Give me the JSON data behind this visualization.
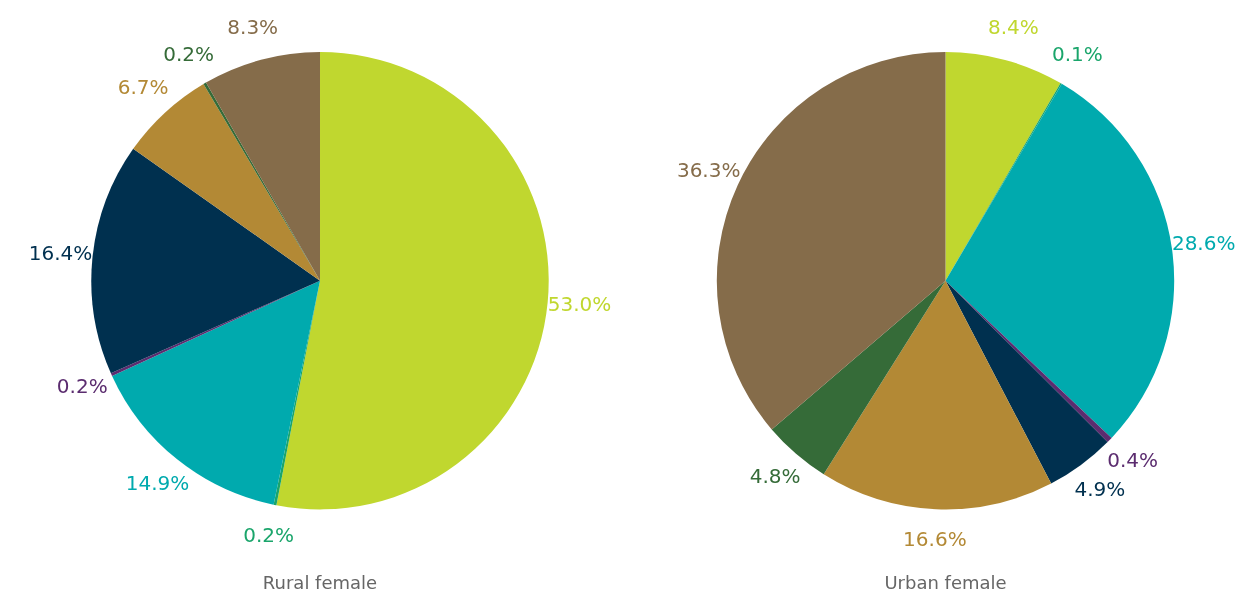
{
  "chart_data": [
    {
      "type": "pie",
      "title": "Rural female",
      "categories": [
        null,
        null,
        null,
        null,
        null,
        null,
        null,
        null
      ],
      "values": [
        53.0,
        0.2,
        14.9,
        0.2,
        16.4,
        6.7,
        0.2,
        8.3
      ],
      "value_labels": [
        "53.0%",
        "0.2%",
        "14.9%",
        "0.2%",
        "16.4%",
        "6.7%",
        "0.2%",
        "8.3%"
      ],
      "colors": [
        "#c0d72f",
        "#1aa56b",
        "#00aaae",
        "#5b2c6f",
        "#00304f",
        "#b38935",
        "#356b38",
        "#856c4a"
      ],
      "legend": false
    },
    {
      "type": "pie",
      "title": "Urban female",
      "categories": [
        null,
        null,
        null,
        null,
        null,
        null,
        null,
        null
      ],
      "values": [
        8.4,
        0.1,
        28.6,
        0.4,
        4.9,
        16.6,
        4.8,
        36.3
      ],
      "value_labels": [
        "8.4%",
        "0.1%",
        "28.6%",
        "0.4%",
        "4.9%",
        "16.6%",
        "4.8%",
        "36.3%"
      ],
      "colors": [
        "#c0d72f",
        "#1aa56b",
        "#00aaae",
        "#5b2c6f",
        "#00304f",
        "#b38935",
        "#356b38",
        "#856c4a"
      ],
      "legend": false
    }
  ]
}
